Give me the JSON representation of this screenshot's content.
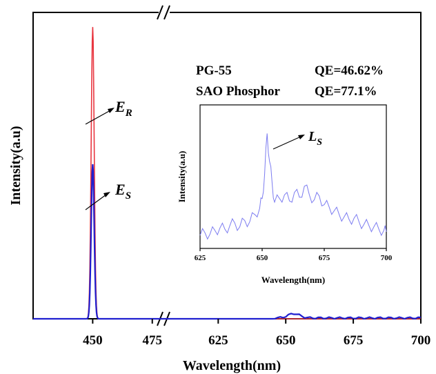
{
  "chart_data": [
    {
      "type": "line",
      "xlabel": "Wavelength(nm)",
      "ylabel": "Intensity(a.u)",
      "x_broken": true,
      "x_segments": [
        {
          "range": [
            425,
            480
          ],
          "ticks": [
            450,
            475
          ]
        },
        {
          "range": [
            605,
            700
          ],
          "ticks": [
            625,
            650,
            675,
            700
          ]
        }
      ],
      "tick_labels": [
        "450",
        "475",
        "625",
        "650",
        "675",
        "700"
      ],
      "ylim": [
        0,
        1.05
      ],
      "series": [
        {
          "color": "#e8353f",
          "peak_x": 450,
          "peak_y": 1.0,
          "baseline": 0.0
        },
        {
          "color": "#1f1fcf",
          "peak_x": 450,
          "peak_y": 0.53,
          "baseline": 0.0,
          "secondary_peak_x": 653,
          "secondary_peak_y": 0.015
        }
      ],
      "annotations": [
        {
          "main": "E",
          "sub": "R"
        },
        {
          "main": "E",
          "sub": "S"
        }
      ],
      "grid": false
    },
    {
      "type": "line",
      "role": "inset",
      "xlabel": "Wavelength(nm)",
      "ylabel": "Intensity(a.u)",
      "xlim": [
        625,
        700
      ],
      "xticks": [
        625,
        650,
        675,
        700
      ],
      "xtick_labels": [
        "625",
        "650",
        "675",
        "700"
      ],
      "series": [
        {
          "color": "#7b7bf0",
          "x": [
            625,
            627,
            629,
            631,
            633,
            635,
            637,
            639,
            641,
            643,
            645,
            647,
            649,
            650,
            651,
            652,
            653,
            654,
            655,
            657,
            659,
            661,
            663,
            665,
            667,
            669,
            671,
            673,
            675,
            677,
            679,
            681,
            683,
            685,
            687,
            689,
            691,
            693,
            695,
            697,
            699,
            700
          ],
          "y": [
            0.05,
            0.07,
            0.06,
            0.09,
            0.11,
            0.1,
            0.13,
            0.15,
            0.12,
            0.17,
            0.16,
            0.22,
            0.27,
            0.35,
            0.55,
            0.88,
            0.65,
            0.48,
            0.32,
            0.35,
            0.38,
            0.33,
            0.4,
            0.36,
            0.45,
            0.38,
            0.34,
            0.37,
            0.3,
            0.28,
            0.25,
            0.22,
            0.2,
            0.18,
            0.19,
            0.16,
            0.14,
            0.13,
            0.12,
            0.1,
            0.09,
            0.08
          ]
        }
      ],
      "annotations": [
        {
          "main": "L",
          "sub": "S"
        }
      ]
    }
  ],
  "qe_table": {
    "rows": [
      {
        "name": "PG-55",
        "qe": "QE=46.62%"
      },
      {
        "name": "SAO Phosphor",
        "qe": "QE=77.1%"
      }
    ]
  }
}
